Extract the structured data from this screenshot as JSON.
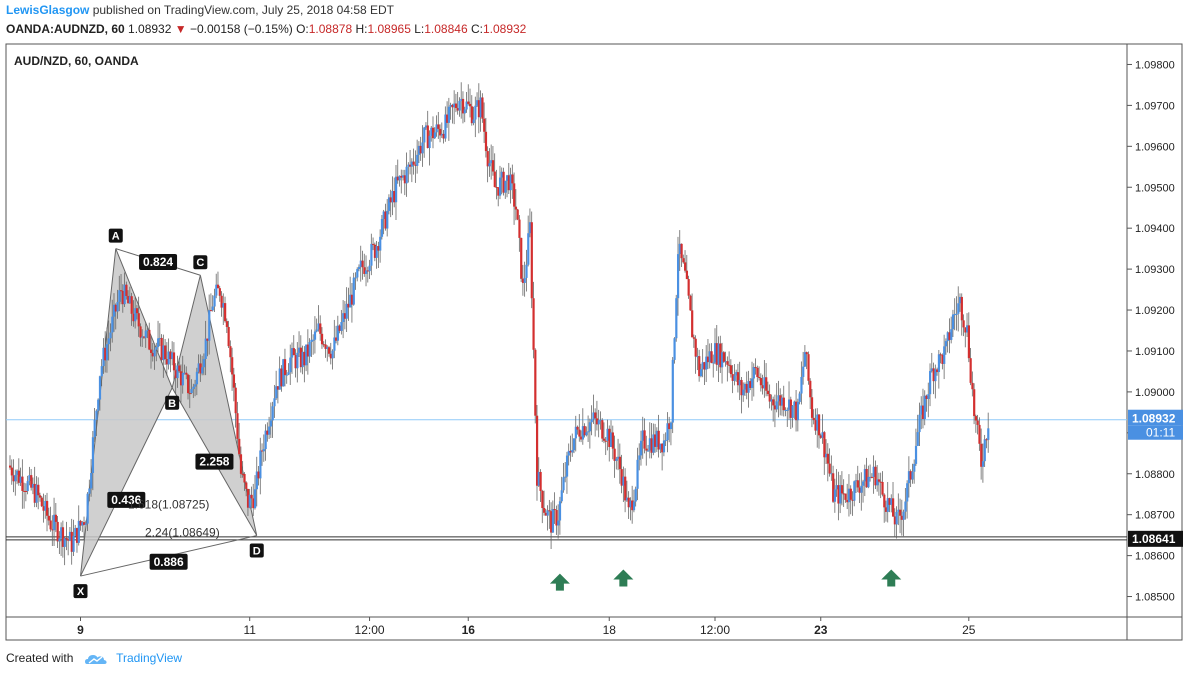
{
  "header": {
    "author": "LewisGlasgow",
    "published": "published on TradingView.com, July 25, 2018 04:58 EDT"
  },
  "ohlc": {
    "symbol": "OANDA:AUDNZD, 60",
    "last": "1.08932",
    "change": "−0.00158 (−0.15%)",
    "o_label": "O:",
    "o": "1.08878",
    "h_label": "H:",
    "h": "1.08965",
    "l_label": "L:",
    "l": "1.08846",
    "c_label": "C:",
    "c": "1.08932"
  },
  "footer": {
    "created": "Created with",
    "brand": "TradingView"
  },
  "colors": {
    "up": "#4a90e2",
    "down": "#d32f2f",
    "pattern_fill": "#c8c8c8",
    "arrow": "#2e7d55"
  },
  "chart_data": {
    "type": "candlestick",
    "title": "AUD/NZD, 60, OANDA",
    "ylim": [
      1.0845,
      1.0985
    ],
    "y_ticks": [
      1.085,
      1.086,
      1.087,
      1.088,
      1.089,
      1.09,
      1.091,
      1.092,
      1.093,
      1.094,
      1.095,
      1.096,
      1.097,
      1.098
    ],
    "y_tick_labels": [
      "1.08500",
      "1.08600",
      "1.08700",
      "1.08800",
      "1.08900",
      "1.09000",
      "1.09100",
      "1.09200",
      "1.09300",
      "1.09400",
      "1.09500",
      "1.09600",
      "1.09700",
      "1.09800"
    ],
    "x_ticks": [
      {
        "label": "9",
        "bar": 10,
        "bold": true
      },
      {
        "label": "11",
        "bar": 34,
        "bold": false
      },
      {
        "label": "12:00",
        "bar": 51,
        "bold": false
      },
      {
        "label": "16",
        "bar": 65,
        "bold": true
      },
      {
        "label": "18",
        "bar": 85,
        "bold": false
      },
      {
        "label": "12:00",
        "bar": 100,
        "bold": false
      },
      {
        "label": "23",
        "bar": 115,
        "bold": true
      },
      {
        "label": "25",
        "bar": 136,
        "bold": false
      }
    ],
    "bar_count": 150,
    "price_path": [
      [
        0,
        1.0882
      ],
      [
        4,
        1.0875
      ],
      [
        6,
        1.0868
      ],
      [
        9,
        1.0863
      ],
      [
        11,
        1.087
      ],
      [
        13,
        1.0905
      ],
      [
        16,
        1.0925
      ],
      [
        18,
        1.0918
      ],
      [
        20,
        1.0912
      ],
      [
        22,
        1.091
      ],
      [
        24,
        1.0905
      ],
      [
        26,
        1.09
      ],
      [
        28,
        1.0912
      ],
      [
        29,
        1.0922
      ],
      [
        30,
        1.0925
      ],
      [
        31,
        1.0918
      ],
      [
        32,
        1.09
      ],
      [
        33,
        1.088
      ],
      [
        34,
        1.0873
      ],
      [
        35,
        1.0875
      ],
      [
        36,
        1.0886
      ],
      [
        38,
        1.0902
      ],
      [
        40,
        1.0908
      ],
      [
        42,
        1.0908
      ],
      [
        44,
        1.0915
      ],
      [
        46,
        1.091
      ],
      [
        48,
        1.092
      ],
      [
        50,
        1.093
      ],
      [
        52,
        1.0935
      ],
      [
        55,
        1.095
      ],
      [
        57,
        1.0955
      ],
      [
        59,
        1.0962
      ],
      [
        62,
        1.0965
      ],
      [
        64,
        1.0972
      ],
      [
        66,
        1.0968
      ],
      [
        67,
        1.097
      ],
      [
        68,
        1.0958
      ],
      [
        69,
        1.095
      ],
      [
        71,
        1.0952
      ],
      [
        72,
        1.0945
      ],
      [
        73,
        1.0925
      ],
      [
        74,
        1.094
      ],
      [
        75,
        1.088
      ],
      [
        76,
        1.0872
      ],
      [
        77,
        1.0868
      ],
      [
        78,
        1.087
      ],
      [
        79,
        1.088
      ],
      [
        80,
        1.0888
      ],
      [
        81,
        1.0891
      ],
      [
        83,
        1.0893
      ],
      [
        85,
        1.089
      ],
      [
        86,
        1.0885
      ],
      [
        87,
        1.088
      ],
      [
        88,
        1.087
      ],
      [
        89,
        1.0878
      ],
      [
        90,
        1.0888
      ],
      [
        93,
        1.0888
      ],
      [
        94,
        1.0895
      ],
      [
        95,
        1.0935
      ],
      [
        96,
        1.0928
      ],
      [
        97,
        1.0915
      ],
      [
        98,
        1.0905
      ],
      [
        100,
        1.091
      ],
      [
        102,
        1.0908
      ],
      [
        104,
        1.09
      ],
      [
        106,
        1.0905
      ],
      [
        108,
        1.0898
      ],
      [
        110,
        1.0898
      ],
      [
        112,
        1.0895
      ],
      [
        113,
        1.091
      ],
      [
        114,
        1.0895
      ],
      [
        115,
        1.0892
      ],
      [
        116,
        1.0885
      ],
      [
        117,
        1.0875
      ],
      [
        119,
        1.0875
      ],
      [
        121,
        1.0878
      ],
      [
        123,
        1.088
      ],
      [
        124,
        1.0875
      ],
      [
        125,
        1.0872
      ],
      [
        126,
        1.0868
      ],
      [
        127,
        1.0872
      ],
      [
        128,
        1.088
      ],
      [
        129,
        1.089
      ],
      [
        131,
        1.0905
      ],
      [
        133,
        1.091
      ],
      [
        134,
        1.0918
      ],
      [
        135,
        1.0922
      ],
      [
        136,
        1.0915
      ],
      [
        137,
        1.0895
      ],
      [
        138,
        1.0883
      ],
      [
        139,
        1.0893
      ]
    ],
    "current_price": 1.08932,
    "current_label": "1.08932",
    "countdown": "01:11",
    "support_price": 1.08641,
    "support_label": "1.08641",
    "pattern": {
      "points": [
        {
          "name": "X",
          "bar": 10,
          "price": 1.0855
        },
        {
          "name": "A",
          "bar": 15,
          "price": 1.0935
        },
        {
          "name": "B",
          "bar": 23,
          "price": 1.0901
        },
        {
          "name": "C",
          "bar": 27,
          "price": 1.09285
        },
        {
          "name": "D",
          "bar": 35,
          "price": 1.08649
        }
      ],
      "ratios": [
        {
          "text": "0.824",
          "at": "AC"
        },
        {
          "text": "0.436",
          "at": "XB"
        },
        {
          "text": "2.258",
          "at": "BD"
        },
        {
          "text": "0.886",
          "at": "XD"
        }
      ],
      "fib_labels": [
        {
          "text": "1.618(1.08725)",
          "price": 1.08725
        },
        {
          "text": "2.24(1.08649)",
          "price": 1.08649
        }
      ]
    },
    "arrows": [
      {
        "bar": 78,
        "price": 1.086
      },
      {
        "bar": 87,
        "price": 1.0861
      },
      {
        "bar": 125,
        "price": 1.0861
      }
    ]
  }
}
